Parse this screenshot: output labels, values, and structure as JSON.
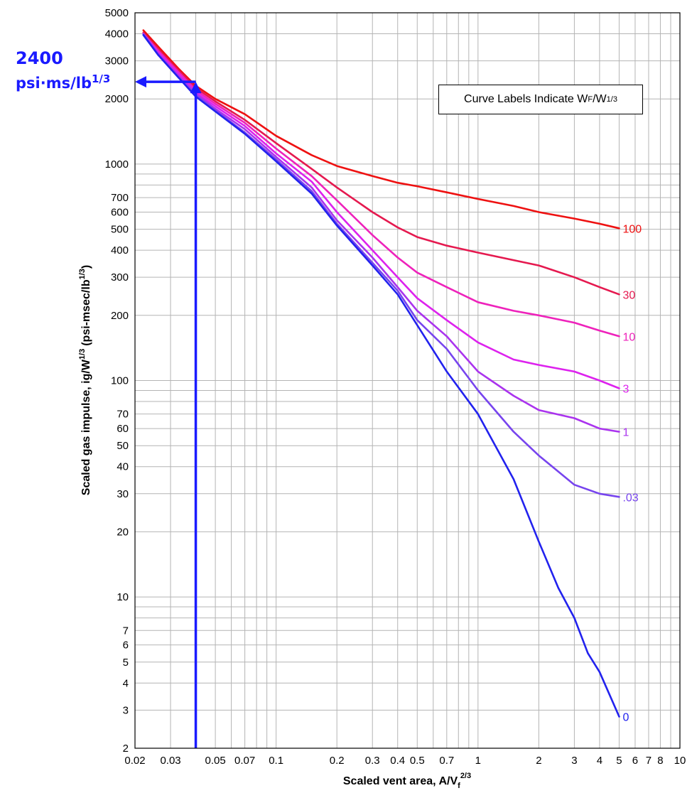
{
  "annotation": {
    "value_text": "2400",
    "unit_text": "psi·ms/lb",
    "unit_exponent": "1/3",
    "x": 0.04,
    "y": 2400,
    "color": "#1a1aff"
  },
  "legend": {
    "text": "Curve Labels Indicate W",
    "sub": "F",
    "text2": "/W",
    "sup": "1/3"
  },
  "chart_data": {
    "type": "line",
    "title": "",
    "xlabel": "Scaled vent area, A/V",
    "xlabel_sub": "f",
    "xlabel_sup": "2/3",
    "ylabel": "Scaled gas impulse, ig/W",
    "ylabel_sup": "1/3",
    "ylabel_units": "(psi-msec/lb",
    "ylabel_units_sup": "1/3",
    "ylabel_units_close": ")",
    "x_scale": "log",
    "y_scale": "log",
    "xlim": [
      0.02,
      10
    ],
    "ylim": [
      2,
      5000
    ],
    "grid": true,
    "x_ticks": [
      {
        "v": 0.02,
        "label": "0.02"
      },
      {
        "v": 0.03,
        "label": "0.03"
      },
      {
        "v": 0.05,
        "label": "0.05"
      },
      {
        "v": 0.07,
        "label": "0.07"
      },
      {
        "v": 0.1,
        "label": "0.1"
      },
      {
        "v": 0.2,
        "label": "0.2"
      },
      {
        "v": 0.3,
        "label": "0.3"
      },
      {
        "v": 0.4,
        "label": "0.4"
      },
      {
        "v": 0.5,
        "label": "0.5"
      },
      {
        "v": 0.7,
        "label": "0.7"
      },
      {
        "v": 1,
        "label": "1"
      },
      {
        "v": 2,
        "label": "2"
      },
      {
        "v": 3,
        "label": "3"
      },
      {
        "v": 4,
        "label": "4"
      },
      {
        "v": 5,
        "label": "5"
      },
      {
        "v": 6,
        "label": "6"
      },
      {
        "v": 7,
        "label": "7"
      },
      {
        "v": 8,
        "label": "8"
      },
      {
        "v": 10,
        "label": "10"
      }
    ],
    "y_ticks": [
      {
        "v": 2,
        "label": "2"
      },
      {
        "v": 3,
        "label": "3"
      },
      {
        "v": 4,
        "label": "4"
      },
      {
        "v": 5,
        "label": "5"
      },
      {
        "v": 6,
        "label": "6"
      },
      {
        "v": 7,
        "label": "7"
      },
      {
        "v": 10,
        "label": "10"
      },
      {
        "v": 20,
        "label": "20"
      },
      {
        "v": 30,
        "label": "30"
      },
      {
        "v": 40,
        "label": "40"
      },
      {
        "v": 50,
        "label": "50"
      },
      {
        "v": 60,
        "label": "60"
      },
      {
        "v": 70,
        "label": "70"
      },
      {
        "v": 100,
        "label": "100"
      },
      {
        "v": 200,
        "label": "200"
      },
      {
        "v": 300,
        "label": "300"
      },
      {
        "v": 400,
        "label": "400"
      },
      {
        "v": 500,
        "label": "500"
      },
      {
        "v": 600,
        "label": "600"
      },
      {
        "v": 700,
        "label": "700"
      },
      {
        "v": 1000,
        "label": "1000"
      },
      {
        "v": 2000,
        "label": "2000"
      },
      {
        "v": 3000,
        "label": "3000"
      },
      {
        "v": 4000,
        "label": "4000"
      },
      {
        "v": 5000,
        "label": "5000"
      }
    ],
    "series": [
      {
        "label": "100",
        "color": "#ee1111",
        "points": [
          [
            0.022,
            4150
          ],
          [
            0.026,
            3500
          ],
          [
            0.033,
            2750
          ],
          [
            0.04,
            2300
          ],
          [
            0.05,
            2000
          ],
          [
            0.07,
            1700
          ],
          [
            0.1,
            1350
          ],
          [
            0.15,
            1100
          ],
          [
            0.2,
            980
          ],
          [
            0.3,
            880
          ],
          [
            0.4,
            820
          ],
          [
            0.5,
            790
          ],
          [
            0.7,
            740
          ],
          [
            1,
            690
          ],
          [
            1.5,
            640
          ],
          [
            2,
            600
          ],
          [
            3,
            560
          ],
          [
            4,
            530
          ],
          [
            5,
            505
          ]
        ]
      },
      {
        "label": "30",
        "color": "#e5194f",
        "points": [
          [
            0.022,
            4050
          ],
          [
            0.026,
            3400
          ],
          [
            0.033,
            2700
          ],
          [
            0.04,
            2250
          ],
          [
            0.05,
            1950
          ],
          [
            0.07,
            1600
          ],
          [
            0.1,
            1250
          ],
          [
            0.15,
            950
          ],
          [
            0.2,
            780
          ],
          [
            0.3,
            600
          ],
          [
            0.4,
            510
          ],
          [
            0.5,
            460
          ],
          [
            0.7,
            420
          ],
          [
            1,
            390
          ],
          [
            1.5,
            360
          ],
          [
            2,
            340
          ],
          [
            3,
            300
          ],
          [
            4,
            270
          ],
          [
            5,
            250
          ]
        ]
      },
      {
        "label": "10",
        "color": "#ee22bb",
        "points": [
          [
            0.022,
            4000
          ],
          [
            0.026,
            3350
          ],
          [
            0.033,
            2650
          ],
          [
            0.04,
            2200
          ],
          [
            0.05,
            1900
          ],
          [
            0.07,
            1550
          ],
          [
            0.1,
            1180
          ],
          [
            0.15,
            880
          ],
          [
            0.2,
            680
          ],
          [
            0.3,
            470
          ],
          [
            0.4,
            370
          ],
          [
            0.5,
            315
          ],
          [
            0.7,
            270
          ],
          [
            1,
            230
          ],
          [
            1.5,
            210
          ],
          [
            2,
            200
          ],
          [
            3,
            185
          ],
          [
            4,
            170
          ],
          [
            5,
            160
          ]
        ]
      },
      {
        "label": "3",
        "color": "#dd22ee",
        "points": [
          [
            0.022,
            4000
          ],
          [
            0.026,
            3300
          ],
          [
            0.033,
            2600
          ],
          [
            0.04,
            2150
          ],
          [
            0.05,
            1850
          ],
          [
            0.07,
            1500
          ],
          [
            0.1,
            1120
          ],
          [
            0.15,
            830
          ],
          [
            0.2,
            600
          ],
          [
            0.3,
            400
          ],
          [
            0.4,
            300
          ],
          [
            0.5,
            240
          ],
          [
            0.7,
            190
          ],
          [
            1,
            150
          ],
          [
            1.5,
            125
          ],
          [
            2,
            118
          ],
          [
            3,
            110
          ],
          [
            4,
            100
          ],
          [
            5,
            92
          ]
        ]
      },
      {
        "label": "1",
        "color": "#aa33ee",
        "points": [
          [
            0.022,
            4000
          ],
          [
            0.026,
            3250
          ],
          [
            0.033,
            2550
          ],
          [
            0.04,
            2120
          ],
          [
            0.05,
            1800
          ],
          [
            0.07,
            1450
          ],
          [
            0.1,
            1080
          ],
          [
            0.15,
            780
          ],
          [
            0.2,
            550
          ],
          [
            0.3,
            370
          ],
          [
            0.4,
            270
          ],
          [
            0.5,
            210
          ],
          [
            0.7,
            160
          ],
          [
            1,
            110
          ],
          [
            1.5,
            85
          ],
          [
            2,
            73
          ],
          [
            3,
            67
          ],
          [
            4,
            60
          ],
          [
            5,
            58
          ]
        ]
      },
      {
        "label": ".03",
        "color": "#7744ee",
        "points": [
          [
            0.022,
            3950
          ],
          [
            0.026,
            3200
          ],
          [
            0.033,
            2500
          ],
          [
            0.04,
            2080
          ],
          [
            0.05,
            1770
          ],
          [
            0.07,
            1400
          ],
          [
            0.1,
            1050
          ],
          [
            0.15,
            750
          ],
          [
            0.2,
            530
          ],
          [
            0.3,
            350
          ],
          [
            0.4,
            260
          ],
          [
            0.5,
            190
          ],
          [
            0.7,
            140
          ],
          [
            1,
            90
          ],
          [
            1.5,
            58
          ],
          [
            2,
            45
          ],
          [
            3,
            33
          ],
          [
            4,
            30
          ],
          [
            5,
            29
          ]
        ]
      },
      {
        "label": "0",
        "color": "#2222ee",
        "points": [
          [
            0.022,
            3950
          ],
          [
            0.026,
            3200
          ],
          [
            0.033,
            2500
          ],
          [
            0.04,
            2050
          ],
          [
            0.05,
            1750
          ],
          [
            0.07,
            1380
          ],
          [
            0.1,
            1030
          ],
          [
            0.15,
            730
          ],
          [
            0.2,
            520
          ],
          [
            0.3,
            340
          ],
          [
            0.4,
            250
          ],
          [
            0.5,
            180
          ],
          [
            0.7,
            110
          ],
          [
            1,
            70
          ],
          [
            1.5,
            35
          ],
          [
            2,
            18
          ],
          [
            2.5,
            11
          ],
          [
            3,
            8
          ],
          [
            3.5,
            5.5
          ],
          [
            4,
            4.5
          ],
          [
            5,
            2.8
          ]
        ]
      }
    ]
  }
}
